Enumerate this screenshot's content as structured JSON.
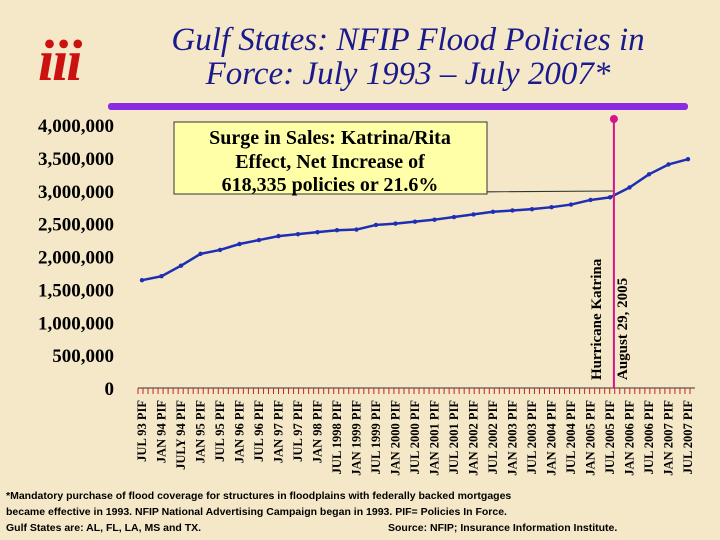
{
  "title_line1": "Gulf States: NFIP Flood Policies in",
  "title_line2": "Force: July 1993 – July 2007*",
  "logo_text": "iii",
  "callout": {
    "line1": "Surge in Sales: Katrina/Rita",
    "line2": "Effect, Net Increase of",
    "line3": "618,335 policies or 21.6%"
  },
  "marker": {
    "label1": "Hurricane Katrina",
    "label2": "August 29, 2005"
  },
  "footnote": {
    "line1": "*Mandatory purchase of flood coverage for structures in floodplains with federally backed mortgages",
    "line2": "became effective in 1993. NFIP National Advertising Campaign began in 1993.   PIF= Policies In Force.",
    "line3a": "Gulf States are: AL, FL, LA, MS and TX.",
    "line3b": "Source: NFIP; Insurance Information Institute."
  },
  "colors": {
    "background": "#f5e8c8",
    "title": "#1a1a8c",
    "series": "#1f2fb4",
    "logo": "#cc1111",
    "accent_bar": "#8a2be2",
    "callout_fill": "#ffffa8",
    "marker_line": "#d4148c",
    "ticks": "#cc2222"
  },
  "chart_data": {
    "type": "line",
    "ylim": [
      0,
      4000000
    ],
    "yticks": [
      "4,000,000",
      "3,500,000",
      "3,000,000",
      "2,500,000",
      "2,000,000",
      "1,500,000",
      "1,000,000",
      "500,000",
      "0"
    ],
    "categories": [
      "JUL 93 PIF",
      "JAN 94 PIF",
      "JULY 94 PIF",
      "JAN 95 PIF",
      "JUL 95 PIF",
      "JAN 96 PIF",
      "JUL 96 PIF",
      "JAN 97 PIF",
      "JUL 97 PIF",
      "JAN 98 PIF",
      "JUL 1998 PIF",
      "JAN 1999 PIF",
      "JUL 1999 PIF",
      "JAN 2000 PIF",
      "JUL 2000 PIF",
      "JAN 2001 PIF",
      "JUL 2001 PIF",
      "JAN 2002 PIF",
      "JUL 2002 PIF",
      "JAN 2003 PIF",
      "JUL 2003 PIF",
      "JAN 2004 PIF",
      "JUL 2004 PIF",
      "JAN 2005 PIF",
      "JUL 2005 PIF",
      "JAN 2006 PIF",
      "JUL 2006 PIF",
      "JAN 2007 PIF",
      "JUL 2007 PIF"
    ],
    "series": [
      {
        "values": [
          1640000,
          1700000,
          1860000,
          2040000,
          2100000,
          2190000,
          2250000,
          2310000,
          2340000,
          2370000,
          2400000,
          2410000,
          2480000,
          2500000,
          2530000,
          2560000,
          2600000,
          2640000,
          2680000,
          2700000,
          2720000,
          2750000,
          2790000,
          2860000,
          2900000,
          3050000,
          3250000,
          3400000,
          3480000
        ]
      }
    ],
    "event_marker": {
      "category_index": 24.2,
      "label": "Hurricane Katrina August 29, 2005"
    },
    "grid": false
  }
}
